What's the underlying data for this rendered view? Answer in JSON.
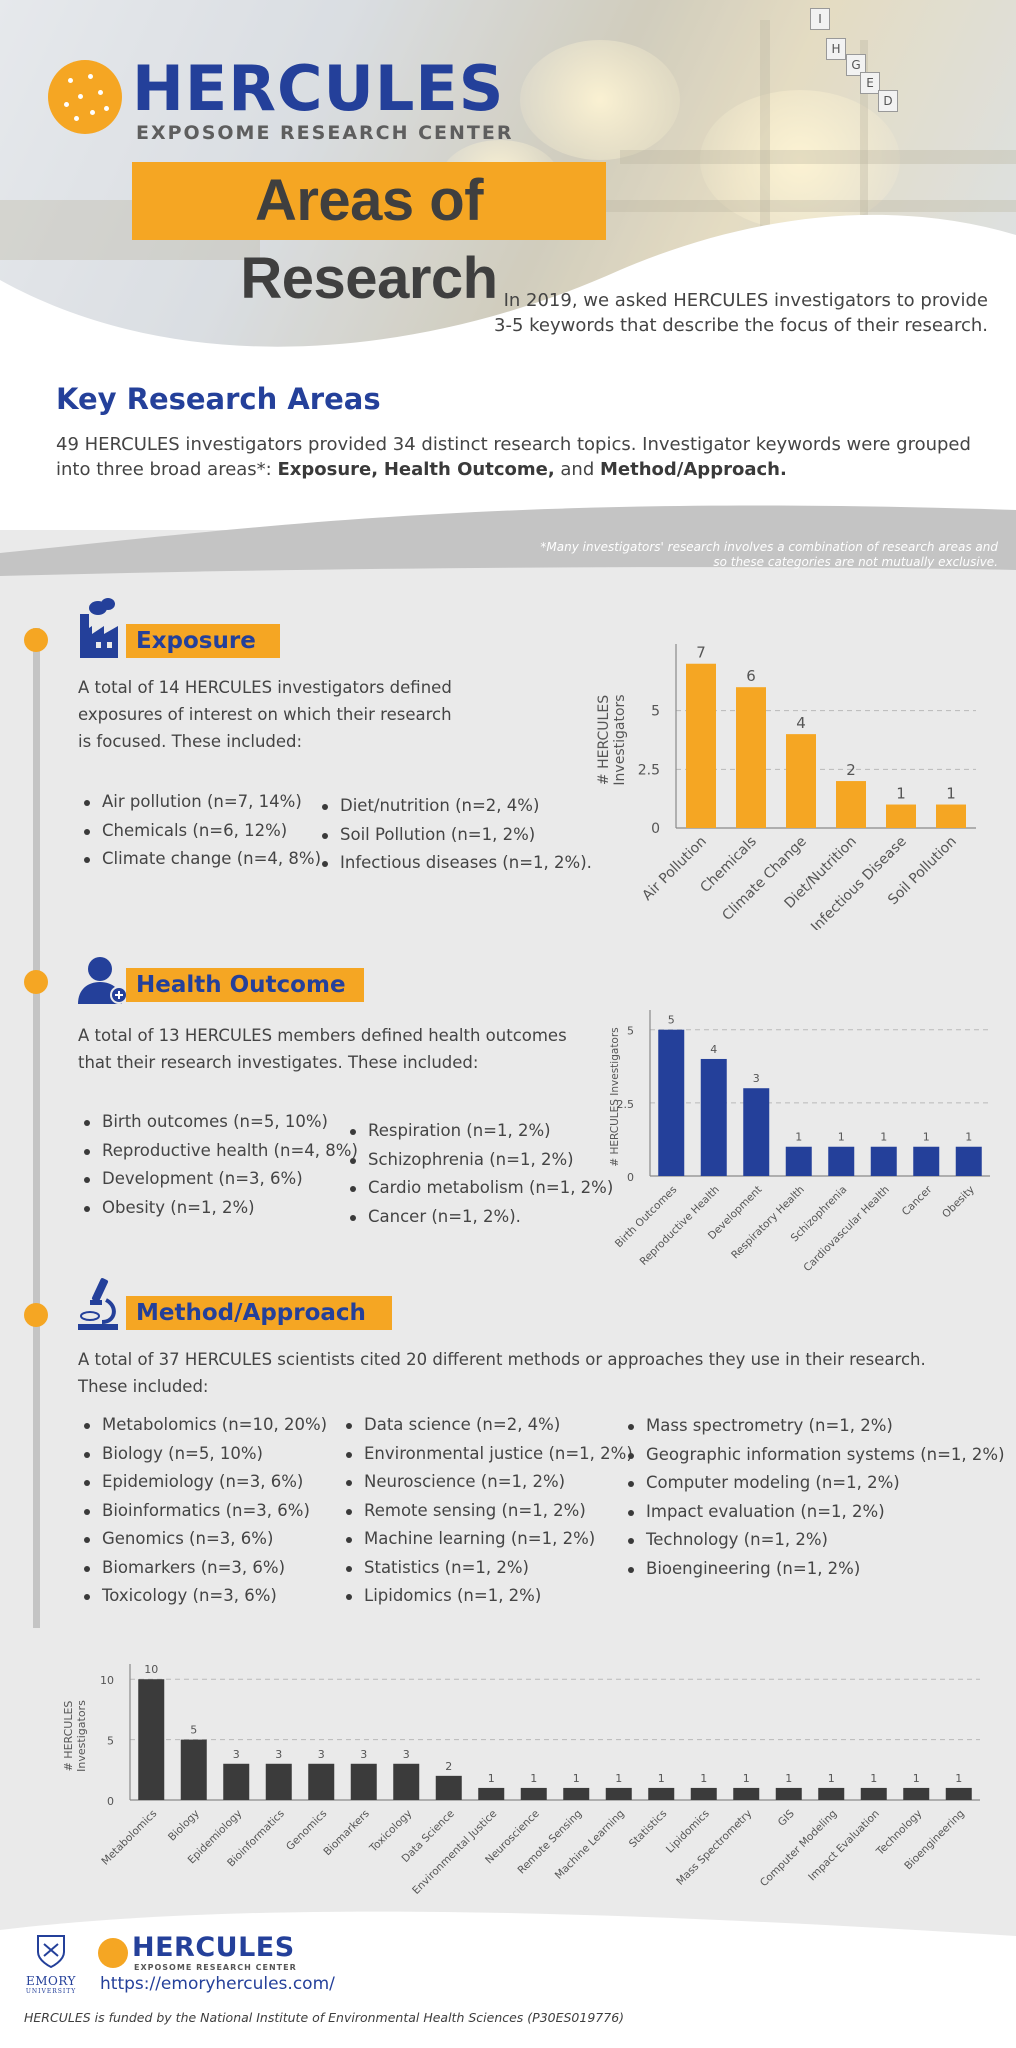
{
  "header": {
    "logo_title": "HERCULES",
    "logo_subtitle": "EXPOSOME RESEARCH CENTER",
    "banner": "Areas of Research",
    "intro": "In 2019, we asked HERCULES investigators to provide 3-5 keywords that describe the focus of their research.",
    "signs": [
      "I",
      "H",
      "G",
      "E",
      "D"
    ]
  },
  "key": {
    "title": "Key Research Areas",
    "text_before": "49 HERCULES investigators provided 34 distinct research topics. Investigator keywords were grouped into three broad areas*:",
    "area1": "Exposure,",
    "area2": "Health Outcome,",
    "and_word": "and",
    "area3": "Method/Approach.",
    "note": "*Many investigators' research involves a combination of research areas and so these categories are not mutually exclusive."
  },
  "exposure": {
    "label": "Exposure",
    "icon": "factory-icon",
    "para": "A total of 14 HERCULES investigators defined exposures of interest on which their research is focused. These included:",
    "list_left": [
      "Air pollution (n=7, 14%)",
      "Chemicals (n=6, 12%)",
      "Climate change (n=4, 8%)"
    ],
    "list_right": [
      "Diet/nutrition (n=2, 4%)",
      "Soil Pollution (n=1, 2%)",
      "Infectious diseases (n=1, 2%)."
    ]
  },
  "health": {
    "label": "Health Outcome",
    "icon": "person-plus-icon",
    "para": "A total of 13 HERCULES members defined health outcomes that their research investigates. These included:",
    "list_left": [
      "Birth outcomes (n=5, 10%)",
      "Reproductive health (n=4, 8%)",
      "Development (n=3, 6%)",
      "Obesity (n=1, 2%)"
    ],
    "list_right": [
      "Respiration (n=1, 2%)",
      "Schizophrenia (n=1, 2%)",
      "Cardio metabolism (n=1, 2%)",
      "Cancer (n=1, 2%)."
    ]
  },
  "method": {
    "label": "Method/Approach",
    "icon": "microscope-icon",
    "para": "A total of 37 HERCULES scientists cited 20 different methods or approaches they use in their research. These included:",
    "list_col1": [
      "Metabolomics (n=10, 20%)",
      "Biology (n=5, 10%)",
      "Epidemiology (n=3, 6%)",
      "Bioinformatics (n=3, 6%)",
      "Genomics (n=3, 6%)",
      "Biomarkers (n=3, 6%)",
      "Toxicology (n=3, 6%)"
    ],
    "list_col2": [
      "Data science (n=2, 4%)",
      "Environmental justice (n=1, 2%)",
      "Neuroscience (n=1, 2%)",
      "Remote sensing (n=1, 2%)",
      "Machine learning (n=1, 2%)",
      "Statistics (n=1, 2%)",
      "Lipidomics (n=1, 2%)"
    ],
    "list_col3": [
      "Mass spectrometry (n=1, 2%)",
      "Geographic information systems (n=1, 2%)",
      "Computer modeling (n=1, 2%)",
      "Impact evaluation (n=1, 2%)",
      "Technology (n=1, 2%)",
      "Bioengineering (n=1, 2%)"
    ]
  },
  "chart_data": [
    {
      "type": "bar",
      "title": "",
      "ylabel": "# HERCULES Investigators",
      "categories": [
        "Air Pollution",
        "Chemicals",
        "Climate Change",
        "Diet/Nutrition",
        "Infectious Disease",
        "Soil Pollution"
      ],
      "values": [
        7,
        6,
        4,
        2,
        1,
        1
      ],
      "yticks": [
        "0",
        "2.5",
        "5"
      ],
      "ylim": [
        0,
        7.5
      ],
      "color": "#f5a623",
      "grid": true
    },
    {
      "type": "bar",
      "title": "",
      "ylabel": "# HERCULES Investigators",
      "categories": [
        "Birth Outcomes",
        "Reproductive Health",
        "Development",
        "Respiratory Health",
        "Schizophrenia",
        "Cardiovascular Health",
        "Cancer",
        "Obesity"
      ],
      "values": [
        5,
        4,
        3,
        1,
        1,
        1,
        1,
        1
      ],
      "yticks": [
        "0",
        "2.5",
        "5"
      ],
      "ylim": [
        0,
        5.4
      ],
      "color": "#24409a",
      "grid": true
    },
    {
      "type": "bar",
      "title": "",
      "ylabel": "# HERCULES Investigators",
      "categories": [
        "Metabolomics",
        "Biology",
        "Epidemiology",
        "Bioinformatics",
        "Genomics",
        "Biomarkers",
        "Toxicology",
        "Data Science",
        "Environmental Justice",
        "Neuroscience",
        "Remote Sensing",
        "Machine Learning",
        "Statistics",
        "Lipidomics",
        "Mass Spectrometry",
        "GIS",
        "Computer Modeling",
        "Impact Evaluation",
        "Technology",
        "Bioengineering"
      ],
      "values": [
        10,
        5,
        3,
        3,
        3,
        3,
        3,
        2,
        1,
        1,
        1,
        1,
        1,
        1,
        1,
        1,
        1,
        1,
        1,
        1
      ],
      "yticks": [
        "0",
        "5",
        "10"
      ],
      "ylim": [
        0,
        10.6
      ],
      "color": "#3b3b3b",
      "grid": true
    }
  ],
  "footer": {
    "emory_name": "EMORY",
    "emory_sub": "UNIVERSITY",
    "logo_title": "HERCULES",
    "logo_subtitle": "EXPOSOME RESEARCH CENTER",
    "url": "https://emoryhercules.com/",
    "funding": "HERCULES is funded by the National Institute of Environmental Health Sciences (P30ES019776)"
  }
}
